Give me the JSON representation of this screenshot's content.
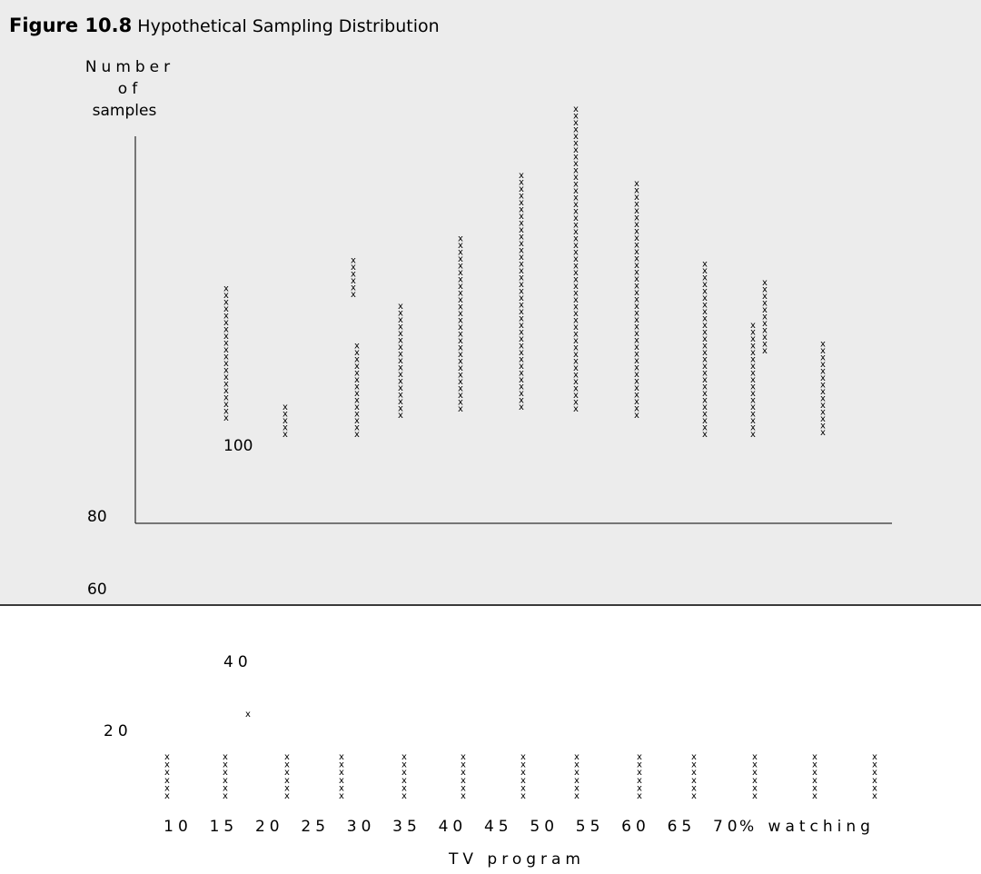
{
  "caption": {
    "figure_number": "Figure 10.8",
    "title": "Hypothetical Sampling Distribution"
  },
  "chart_data": {
    "type": "scatter",
    "title": "Figure 10.8 Hypothetical Sampling Distribution",
    "ylabel": [
      "Number",
      "of",
      "samples"
    ],
    "xlabel": [
      "% watching",
      "TV program"
    ],
    "y_ticks": [
      "100",
      "80",
      "60",
      "40",
      "20"
    ],
    "x_ticks": [
      "10",
      "15",
      "20",
      "25",
      "30",
      "35",
      "40",
      "45",
      "50",
      "55",
      "60",
      "65",
      "70"
    ],
    "marker": "x",
    "upper_columns": [
      {
        "x": 10,
        "count": 20,
        "col": 0
      },
      {
        "x": 15,
        "count": 5,
        "col": 1
      },
      {
        "x": 20,
        "count": 14,
        "col": 2
      },
      {
        "x": 25,
        "count": 17,
        "col": 3
      },
      {
        "x": 30,
        "count": 26,
        "col": 4
      },
      {
        "x": 35,
        "count": 35,
        "col": 5
      },
      {
        "x": 40,
        "count": 45,
        "col": 6
      },
      {
        "x": 45,
        "count": 35,
        "col": 7
      },
      {
        "x": 50,
        "count": 26,
        "col": 8
      },
      {
        "x": 55,
        "count": 17,
        "col": 9
      },
      {
        "x": 60,
        "count": 14,
        "col": 10
      },
      {
        "x": 65,
        "count": 11,
        "col": 11
      },
      {
        "x": 70,
        "count": 6,
        "col": 12
      }
    ],
    "lower_columns": [
      {
        "x": 10,
        "count": 6
      },
      {
        "x": 15,
        "count": 6
      },
      {
        "x": 20,
        "count": 6
      },
      {
        "x": 25,
        "count": 6
      },
      {
        "x": 30,
        "count": 6
      },
      {
        "x": 35,
        "count": 6
      },
      {
        "x": 40,
        "count": 6
      },
      {
        "x": 45,
        "count": 6
      },
      {
        "x": 50,
        "count": 6
      },
      {
        "x": 55,
        "count": 6
      },
      {
        "x": 60,
        "count": 6
      },
      {
        "x": 65,
        "count": 6
      },
      {
        "x": 70,
        "count": 6
      }
    ],
    "grid": false
  }
}
